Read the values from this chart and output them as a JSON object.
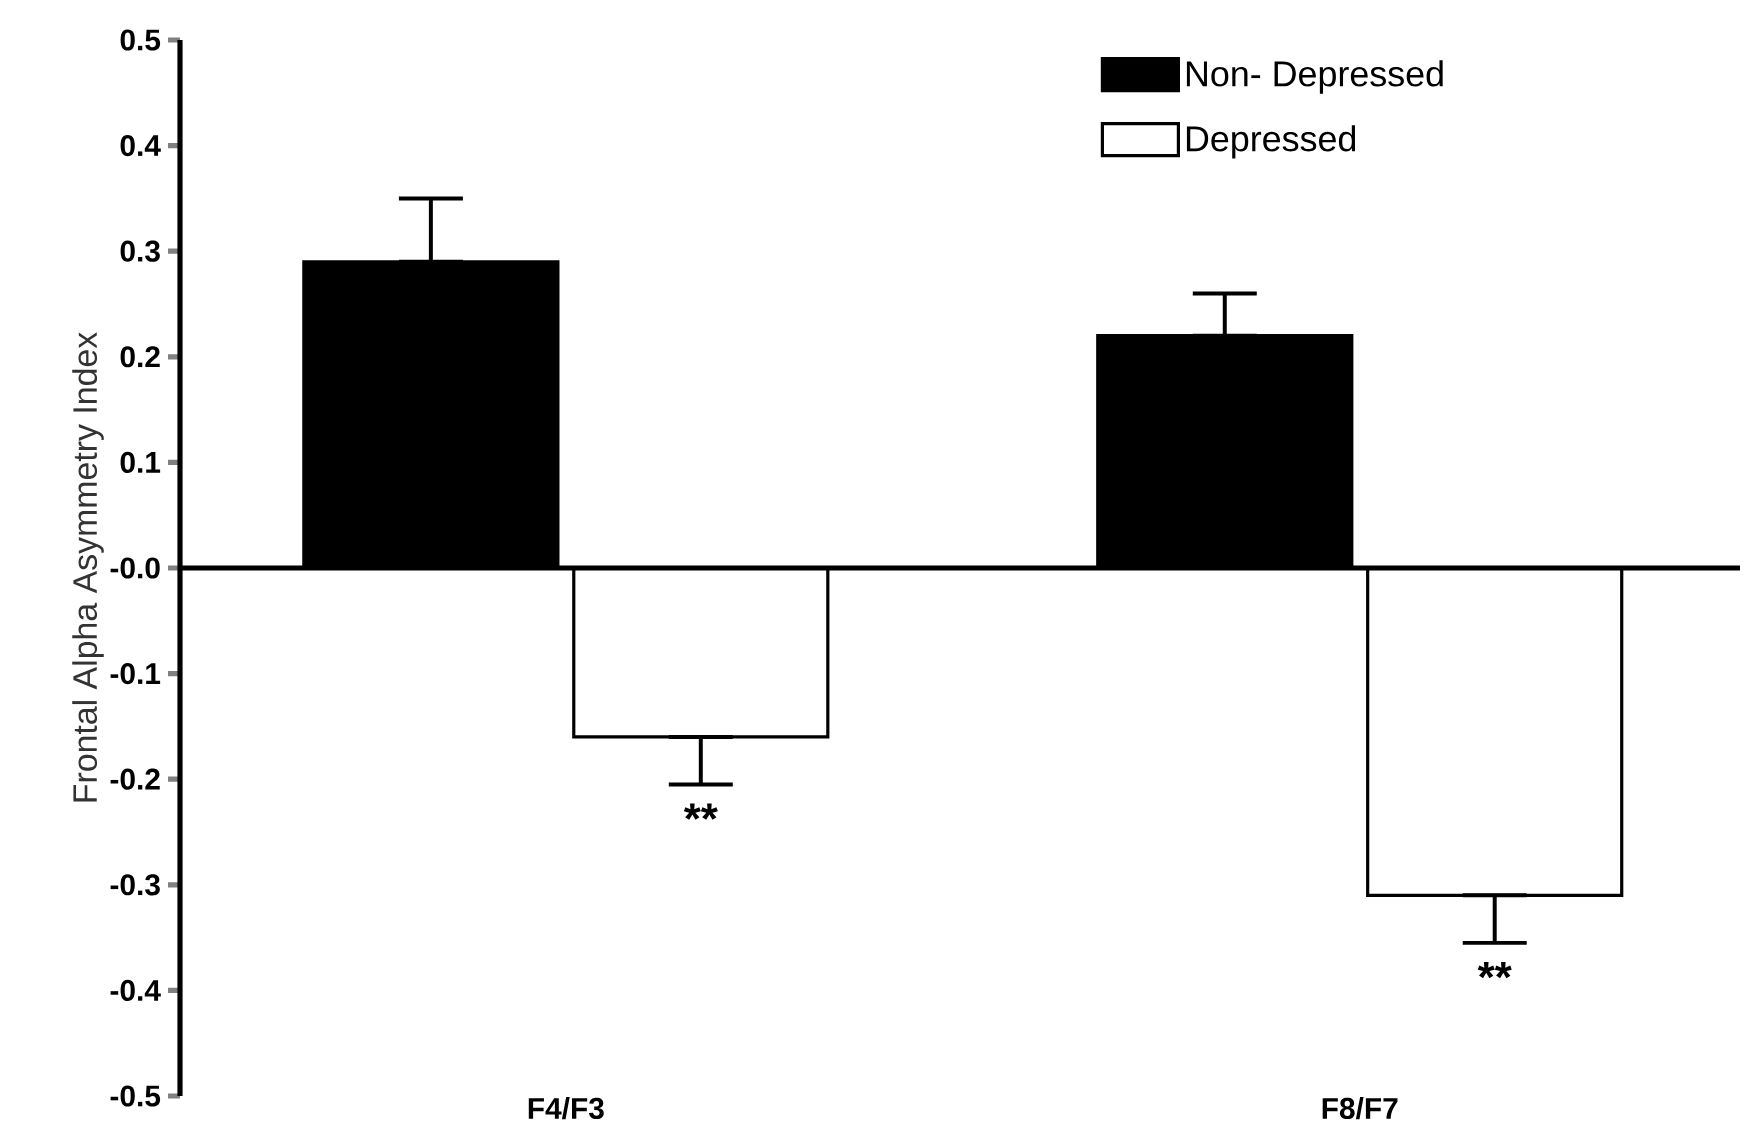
{
  "chart_data": {
    "type": "bar",
    "ylabel": "Frontal Alpha Asymmetry Index",
    "categories": [
      "F4/F3",
      "F8/F7"
    ],
    "series": [
      {
        "name": "Non- Depressed",
        "color": "#000000",
        "values": [
          0.29,
          0.22
        ],
        "errors": [
          0.06,
          0.04
        ]
      },
      {
        "name": "Depressed",
        "color": "#ffffff",
        "values": [
          -0.16,
          -0.31
        ],
        "errors": [
          0.045,
          0.045
        ]
      }
    ],
    "ylim": [
      -0.5,
      0.5
    ],
    "yticks": [
      -0.5,
      -0.4,
      -0.3,
      -0.2,
      -0.1,
      {
        "value": 0,
        "label": "-0.0"
      },
      0.1,
      0.2,
      0.3,
      0.4,
      0.5
    ],
    "legend": "top right",
    "annotations": [
      "**",
      "**"
    ]
  }
}
